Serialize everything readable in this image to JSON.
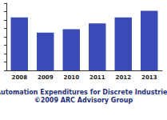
{
  "chart_data": {
    "type": "bar",
    "title": "Automation Expenditures for Discrete Industries",
    "subtitle": "©2009 ARC Advisory Group",
    "categories": [
      "2008",
      "2009",
      "2010",
      "2011",
      "2012",
      "2013"
    ],
    "values": [
      63,
      45,
      49,
      56,
      63,
      71
    ],
    "color": "#3a4bb8",
    "ylim": [
      0,
      80
    ],
    "yticks": [
      0,
      10,
      20,
      30,
      40,
      50,
      60,
      70,
      80
    ],
    "grid": false,
    "tick_labels": "x"
  }
}
